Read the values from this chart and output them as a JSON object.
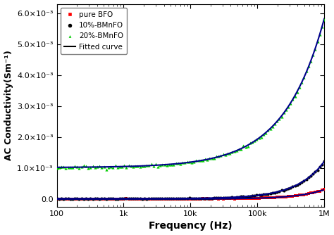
{
  "title": "",
  "xlabel": "Frequency (Hz)",
  "ylabel": "AC Conductivity(Sm⁻¹)",
  "xlim": [
    100,
    1000000
  ],
  "ylim": [
    -0.00025,
    0.0063
  ],
  "yticks": [
    0.0,
    0.001,
    0.002,
    0.003,
    0.004,
    0.005,
    0.006
  ],
  "ytick_labels": [
    "0.0",
    "1.0×10⁻³",
    "2.0×10⁻³",
    "3.0×10⁻³",
    "4.0×10⁻³",
    "5.0×10⁻³",
    "6.0×10⁻³"
  ],
  "legend_labels": [
    "pure BFO",
    "10%-BMnFO",
    "20%-BMnFO",
    "Fitted curve"
  ],
  "pure_BFO_color": "#ff0000",
  "BMnFO10_color": "#000000",
  "BMnFO20_color": "#00cc00",
  "fit_color": "#00008b",
  "background_color": "#ffffff",
  "marker_size": 3.0,
  "fit_linewidth": 1.5,
  "n_points": 120,
  "pure_BFO_dc": 5e-06,
  "pure_BFO_A": 1.5e-10,
  "pure_BFO_n": 1.05,
  "BMnFO10_dc": 1.5e-05,
  "BMnFO10_A": 6e-10,
  "BMnFO10_n": 1.05,
  "BMnFO20_dc": 0.00102,
  "BMnFO20_A": 6.33e-06,
  "BMnFO20_n": 0.72
}
